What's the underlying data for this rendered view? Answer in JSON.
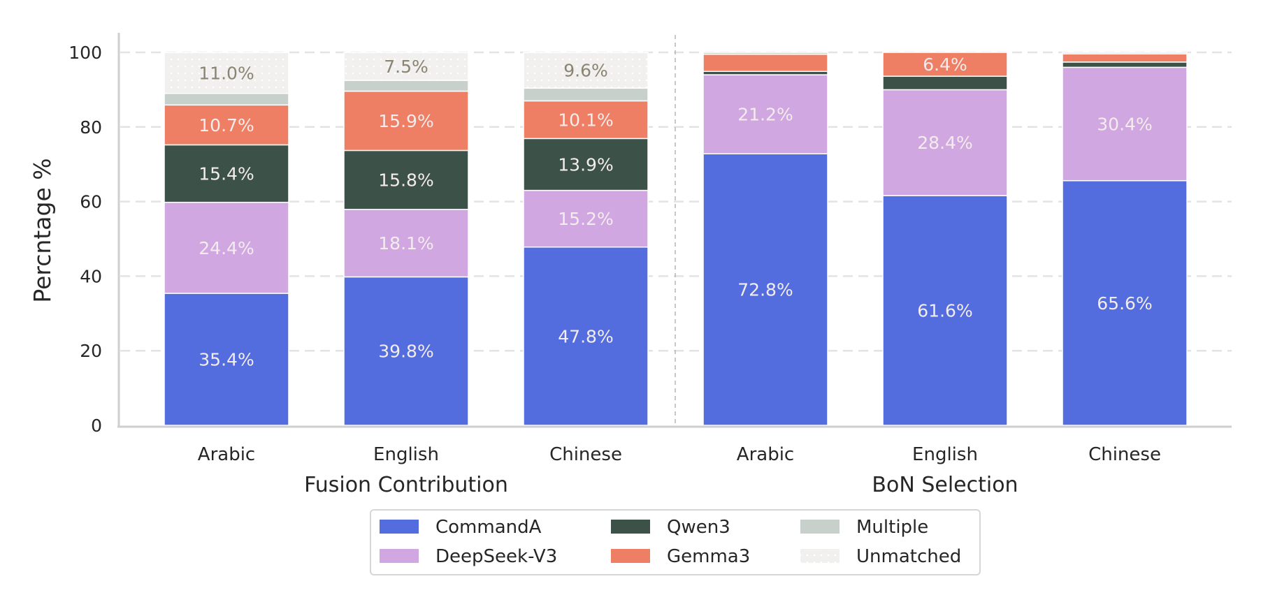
{
  "chart_data": {
    "type": "bar",
    "stacked": true,
    "title": "",
    "ylabel": "Percntage %",
    "ylim": [
      0,
      100
    ],
    "yticks": [
      "0",
      "20",
      "40",
      "60",
      "80",
      "100"
    ],
    "grid": "horizontal dashed",
    "groups": [
      {
        "name": "Fusion Contribution",
        "categories": [
          "Arabic",
          "English",
          "Chinese"
        ]
      },
      {
        "name": "BoN Selection",
        "categories": [
          "Arabic",
          "English",
          "Chinese"
        ]
      }
    ],
    "categories": [
      "Arabic",
      "English",
      "Chinese",
      "Arabic",
      "English",
      "Chinese"
    ],
    "series": [
      {
        "name": "CommandA",
        "color": "#536DDE",
        "values": [
          35.4,
          39.8,
          47.8,
          72.8,
          61.6,
          65.6
        ],
        "labels": [
          "35.4%",
          "39.8%",
          "47.8%",
          "72.8%",
          "61.6%",
          "65.6%"
        ]
      },
      {
        "name": "DeepSeek-V3",
        "color": "#D1A7E2",
        "values": [
          24.4,
          18.1,
          15.2,
          21.2,
          28.4,
          30.4
        ],
        "labels": [
          "24.4%",
          "18.1%",
          "15.2%",
          "21.2%",
          "28.4%",
          "30.4%"
        ]
      },
      {
        "name": "Qwen3",
        "color": "#3C5148",
        "values": [
          15.4,
          15.8,
          13.9,
          0.9,
          3.6,
          1.4
        ],
        "labels": [
          "15.4%",
          "15.8%",
          "13.9%",
          "",
          "",
          ""
        ]
      },
      {
        "name": "Gemma3",
        "color": "#EF7F64",
        "values": [
          10.7,
          15.9,
          10.1,
          4.6,
          6.4,
          2.2
        ],
        "labels": [
          "10.7%",
          "15.9%",
          "10.1%",
          "",
          "6.4%",
          ""
        ]
      },
      {
        "name": "Multiple",
        "color": "#C8D0CB",
        "values": [
          3.1,
          2.9,
          3.4,
          0.5,
          0.0,
          0.4
        ],
        "labels": [
          "",
          "",
          "",
          "",
          "",
          ""
        ]
      },
      {
        "name": "Unmatched",
        "color": "#F1F0EE",
        "values": [
          11.0,
          7.5,
          9.6,
          0,
          0,
          0
        ],
        "labels": [
          "11.0%",
          "7.5%",
          "9.6%",
          "",
          "",
          ""
        ]
      }
    ],
    "legend": {
      "position": "bottom-center",
      "columns": 3
    }
  }
}
